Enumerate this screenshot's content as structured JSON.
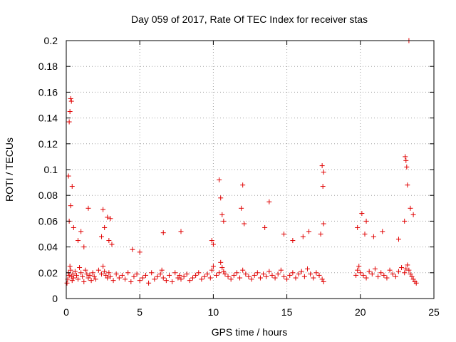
{
  "chart_data": {
    "type": "scatter",
    "title": "Day 059 of 2017, Rate Of TEC Index for receiver stas",
    "xlabel": "GPS time / hours",
    "ylabel": "ROTI / TECUs",
    "xlim": [
      0,
      25
    ],
    "ylim": [
      0,
      0.2
    ],
    "xticks": [
      0,
      5,
      10,
      15,
      20,
      25
    ],
    "xtick_labels": [
      "0",
      "5",
      "10",
      "15",
      "20",
      "25"
    ],
    "yticks": [
      0,
      0.02,
      0.04,
      0.06,
      0.08,
      0.1,
      0.12,
      0.14,
      0.16,
      0.18,
      0.2
    ],
    "ytick_labels": [
      "0",
      "0.02",
      "0.04",
      "0.06",
      "0.08",
      "0.1",
      "0.12",
      "0.14",
      "0.16",
      "0.18",
      "0.2"
    ],
    "grid": true,
    "marker": "+",
    "marker_color": "#e00000",
    "data_gap_hours": [
      17.6,
      19.6
    ],
    "series": [
      {
        "x": [
          0.05,
          0.1,
          0.15,
          0.2,
          0.25,
          0.3,
          0.35,
          0.4,
          0.45,
          0.5,
          0.6,
          0.7,
          0.8,
          0.9,
          1.0,
          1.1,
          1.2,
          1.3,
          1.4,
          1.5,
          1.6,
          1.7,
          1.8,
          1.9,
          2.0,
          2.2,
          2.4,
          2.5,
          2.6,
          2.7,
          2.8,
          2.9,
          3.0,
          3.2,
          3.4,
          3.6,
          3.8,
          4.0,
          4.2,
          4.4,
          4.6,
          4.8,
          5.0,
          5.2,
          5.4,
          5.6,
          5.8,
          6.0,
          6.2,
          6.4,
          6.5,
          6.6,
          6.8,
          7.0,
          7.2,
          7.4,
          7.6,
          7.7,
          7.8,
          8.0,
          8.2,
          8.4,
          8.6,
          8.8,
          9.0,
          9.2,
          9.4,
          9.6,
          9.8,
          9.9,
          10.0,
          10.2,
          10.4,
          10.5,
          10.6,
          10.7,
          10.8,
          11.0,
          11.2,
          11.4,
          11.6,
          11.8,
          12.0,
          12.2,
          12.4,
          12.6,
          12.8,
          13.0,
          13.2,
          13.4,
          13.6,
          13.8,
          14.0,
          14.2,
          14.4,
          14.6,
          14.8,
          15.0,
          15.2,
          15.4,
          15.6,
          15.8,
          16.0,
          16.2,
          16.4,
          16.6,
          16.8,
          17.0,
          17.2,
          17.4,
          17.5,
          19.7,
          19.8,
          19.9,
          20.0,
          20.2,
          20.4,
          20.6,
          20.8,
          21.0,
          21.2,
          21.4,
          21.6,
          21.8,
          22.0,
          22.2,
          22.4,
          22.6,
          22.8,
          23.0,
          23.1,
          23.2,
          23.3,
          23.4,
          23.5,
          23.6,
          23.7,
          23.8,
          0.3,
          0.25,
          0.35,
          0.2,
          0.15,
          0.4,
          1.5,
          2.5,
          2.8,
          3.0,
          6.6,
          7.8,
          10.4,
          10.5,
          12.0,
          13.8,
          17.4,
          17.5,
          17.45,
          20.1,
          20.4,
          23.05,
          23.1,
          23.15,
          23.2,
          23.3,
          0.2,
          0.3,
          0.5,
          0.8,
          1.0,
          1.2,
          2.4,
          2.6,
          2.9,
          3.1,
          4.5,
          5.0,
          9.9,
          10.0,
          10.6,
          10.7,
          11.9,
          12.1,
          13.5,
          14.8,
          15.4,
          16.1,
          16.5,
          17.3,
          17.5,
          19.8,
          20.3,
          20.9,
          21.5,
          22.6,
          23.0,
          23.4,
          23.6
        ],
        "y": [
          0.012,
          0.015,
          0.02,
          0.018,
          0.025,
          0.022,
          0.017,
          0.014,
          0.019,
          0.016,
          0.021,
          0.018,
          0.015,
          0.024,
          0.02,
          0.017,
          0.013,
          0.022,
          0.019,
          0.016,
          0.018,
          0.014,
          0.02,
          0.017,
          0.015,
          0.022,
          0.019,
          0.025,
          0.021,
          0.018,
          0.016,
          0.02,
          0.017,
          0.014,
          0.019,
          0.016,
          0.018,
          0.015,
          0.02,
          0.013,
          0.017,
          0.019,
          0.014,
          0.016,
          0.018,
          0.012,
          0.02,
          0.015,
          0.017,
          0.019,
          0.022,
          0.016,
          0.014,
          0.018,
          0.013,
          0.02,
          0.016,
          0.018,
          0.015,
          0.017,
          0.019,
          0.014,
          0.016,
          0.018,
          0.02,
          0.015,
          0.017,
          0.019,
          0.016,
          0.022,
          0.025,
          0.018,
          0.02,
          0.028,
          0.024,
          0.021,
          0.019,
          0.017,
          0.015,
          0.018,
          0.02,
          0.016,
          0.022,
          0.019,
          0.017,
          0.015,
          0.018,
          0.02,
          0.016,
          0.019,
          0.017,
          0.021,
          0.018,
          0.016,
          0.019,
          0.022,
          0.017,
          0.015,
          0.018,
          0.02,
          0.016,
          0.019,
          0.021,
          0.017,
          0.023,
          0.019,
          0.016,
          0.02,
          0.018,
          0.015,
          0.013,
          0.018,
          0.022,
          0.025,
          0.02,
          0.018,
          0.016,
          0.021,
          0.019,
          0.023,
          0.017,
          0.02,
          0.018,
          0.016,
          0.022,
          0.019,
          0.017,
          0.021,
          0.024,
          0.02,
          0.023,
          0.026,
          0.022,
          0.019,
          0.017,
          0.015,
          0.013,
          0.012,
          0.155,
          0.145,
          0.153,
          0.137,
          0.095,
          0.087,
          0.07,
          0.069,
          0.063,
          0.062,
          0.051,
          0.052,
          0.092,
          0.078,
          0.088,
          0.075,
          0.103,
          0.098,
          0.087,
          0.066,
          0.06,
          0.11,
          0.107,
          0.102,
          0.088,
          0.2,
          0.06,
          0.072,
          0.055,
          0.045,
          0.052,
          0.04,
          0.048,
          0.055,
          0.045,
          0.042,
          0.038,
          0.036,
          0.045,
          0.042,
          0.065,
          0.06,
          0.07,
          0.058,
          0.055,
          0.05,
          0.045,
          0.048,
          0.052,
          0.05,
          0.058,
          0.055,
          0.05,
          0.048,
          0.052,
          0.046,
          0.06,
          0.07,
          0.065
        ]
      }
    ]
  }
}
